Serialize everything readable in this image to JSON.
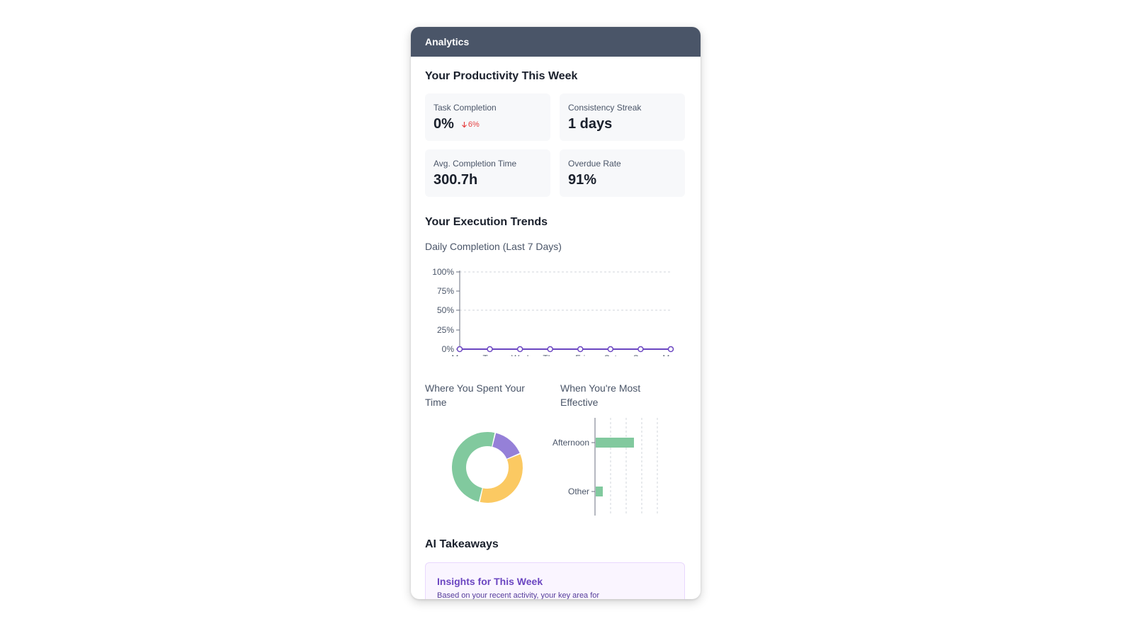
{
  "header": {
    "title": "Analytics"
  },
  "productivity": {
    "title": "Your Productivity This Week",
    "cards": [
      {
        "label": "Task Completion",
        "value": "0%",
        "delta": "6%",
        "delta_direction": "down"
      },
      {
        "label": "Consistency Streak",
        "value": "1 days"
      },
      {
        "label": "Avg. Completion Time",
        "value": "300.7h"
      },
      {
        "label": "Overdue Rate",
        "value": "91%"
      }
    ]
  },
  "trends": {
    "title": "Your Execution Trends",
    "daily_chart_title": "Daily Completion (Last 7 Days)",
    "time_chart_title": "Where You Spent Your Time",
    "effective_chart_title": "When You're Most Effective"
  },
  "takeaways": {
    "title": "AI Takeaways",
    "insight_title": "Insights for This Week",
    "insight_text": "Based on your recent activity, your key area for"
  },
  "colors": {
    "header_bg": "#4a5568",
    "line_series": "#6b46c1",
    "donut_green": "#81c99e",
    "donut_yellow": "#fbc962",
    "donut_purple": "#9580d8",
    "bar_green": "#81c99e",
    "delta_down": "#e53e3e"
  },
  "chart_data": [
    {
      "type": "line",
      "title": "Daily Completion (Last 7 Days)",
      "x": [
        "Mon",
        "Tue",
        "Wed",
        "Thu",
        "Fri",
        "Sat",
        "Sun",
        "Mon"
      ],
      "series": [
        {
          "values": [
            0,
            0,
            0,
            0,
            0,
            0,
            0,
            0
          ]
        }
      ],
      "ylim": [
        0,
        100
      ],
      "yticks": [
        "0%",
        "25%",
        "50%",
        "75%",
        "100%"
      ],
      "grid": "horizontal dashed"
    },
    {
      "type": "pie",
      "title": "Where You Spent Your Time",
      "donut": true,
      "slices": [
        {
          "color": "#9580d8",
          "value": 15
        },
        {
          "color": "#fbc962",
          "value": 35
        },
        {
          "color": "#81c99e",
          "value": 50
        }
      ]
    },
    {
      "type": "bar",
      "orientation": "horizontal",
      "title": "When You're Most Effective",
      "categories": [
        "Afternoon",
        "Other"
      ],
      "values": [
        5,
        1
      ],
      "xlim": [
        0,
        8
      ],
      "grid": "vertical dashed"
    }
  ]
}
